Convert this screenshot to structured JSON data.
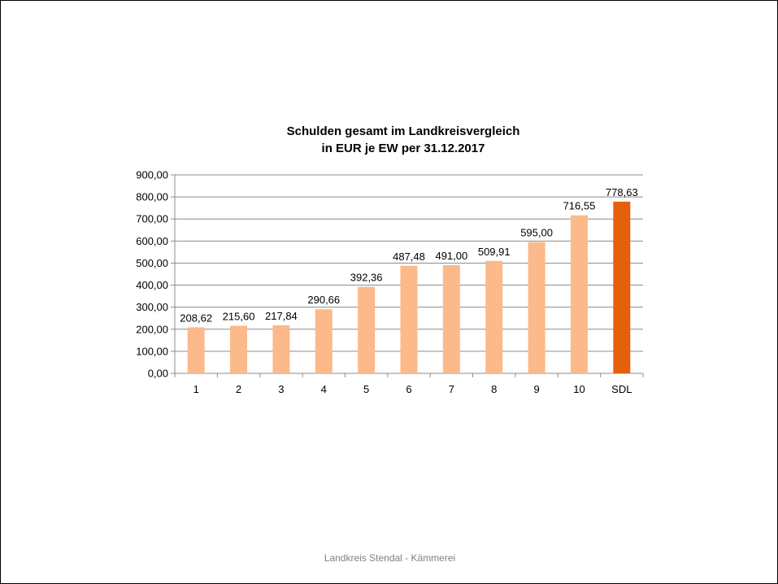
{
  "chart_data": {
    "type": "bar",
    "title_line1": "Schulden gesamt im Landkreisvergleich",
    "title_line2": "in EUR je EW per 31.12.2017",
    "categories": [
      "1",
      "2",
      "3",
      "4",
      "5",
      "6",
      "7",
      "8",
      "9",
      "10",
      "SDL"
    ],
    "values": [
      208.62,
      215.6,
      217.84,
      290.66,
      392.36,
      487.48,
      491.0,
      509.91,
      595.0,
      716.55,
      778.63
    ],
    "value_labels": [
      "208,62",
      "215,60",
      "217,84",
      "290,66",
      "392,36",
      "487,48",
      "491,00",
      "509,91",
      "595,00",
      "716,55",
      "778,63"
    ],
    "ylim": [
      0,
      900
    ],
    "yticks": [
      0,
      100,
      200,
      300,
      400,
      500,
      600,
      700,
      800,
      900
    ],
    "ytick_labels": [
      "0,00",
      "100,00",
      "200,00",
      "300,00",
      "400,00",
      "500,00",
      "600,00",
      "700,00",
      "800,00",
      "900,00"
    ],
    "grid": true,
    "legend": false,
    "colors": {
      "bar": "#fcb98a",
      "highlight_bar": "#e5600a",
      "grid": "#8c8c8c"
    },
    "highlight_category": "SDL"
  },
  "footer": {
    "text": "Landkreis Stendal - Kämmerei"
  }
}
